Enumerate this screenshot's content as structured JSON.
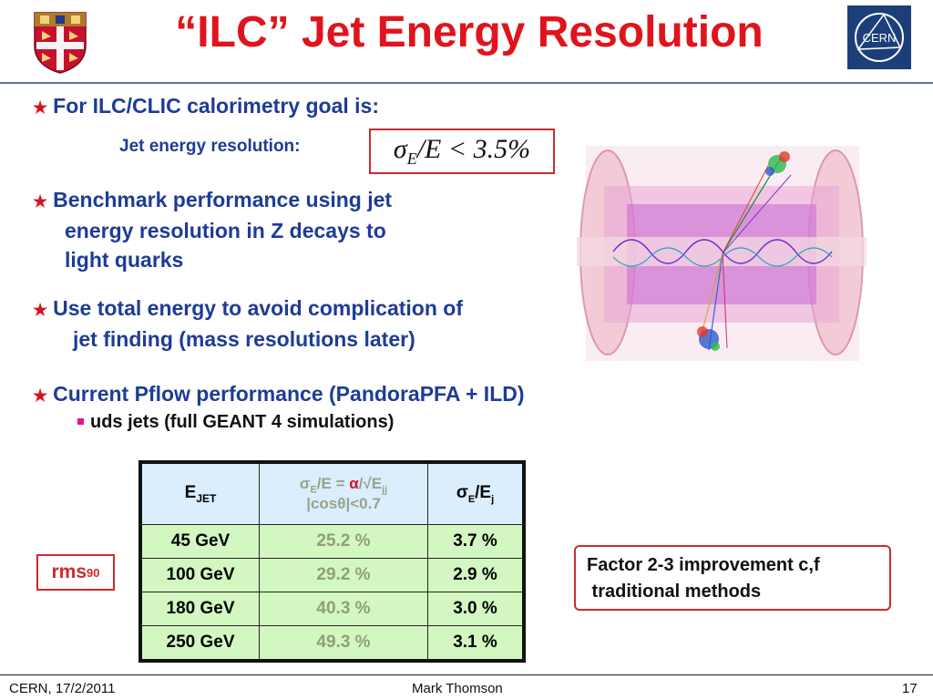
{
  "slide": {
    "title": "“ILC” Jet Energy Resolution",
    "bullets": {
      "b1": "For ILC/CLIC calorimetry goal is:",
      "b1_sub": "Jet energy resolution:",
      "formula": {
        "sigma": "σ",
        "sub": "E",
        "rest": "/E < 3.5%"
      },
      "b2_lines": [
        "Benchmark performance using jet",
        "energy resolution in Z decays to",
        "light quarks"
      ],
      "b3_lines": [
        "Use total energy to avoid complication of",
        "jet finding (mass resolutions later)"
      ],
      "b4": "Current Pflow performance (PandoraPFA + ILD)",
      "b4_sub": "uds jets (full GEANT 4 simulations)"
    },
    "table": {
      "headers": {
        "h1_main": "E",
        "h1_sub": "JET",
        "h2_sigma": "σ",
        "h2_sigma_sub": "E",
        "h2_mid": "/E = ",
        "h2_alpha": "α",
        "h2_slash": "/√E",
        "h2_sub": "jj",
        "h2_line2_a": "|cos",
        "h2_theta": "θ",
        "h2_line2_b": "|<0.7",
        "h3_sigma": "σ",
        "h3_sigma_sub": "E",
        "h3_mid": "/E",
        "h3_sub": "j"
      },
      "rows": [
        {
          "energy": "45 GeV",
          "alpha": "25.2 %",
          "res": "3.7 %"
        },
        {
          "energy": "100 GeV",
          "alpha": "29.2 %",
          "res": "2.9 %"
        },
        {
          "energy": "180 GeV",
          "alpha": "40.3 %",
          "res": "3.0 %"
        },
        {
          "energy": "250 GeV",
          "alpha": "49.3 %",
          "res": "3.1 %"
        }
      ]
    },
    "rms": {
      "label": "rms",
      "sub": "90"
    },
    "factor_lines": [
      "Factor 2-3 improvement c,f",
      " traditional methods"
    ],
    "logos": {
      "cern_text": "CERN"
    }
  },
  "footer": {
    "left": "CERN, 17/2/2011",
    "center": "Mark Thomson",
    "right": "17"
  },
  "colors": {
    "title": "#e0141c",
    "bullet_text": "#1e3c96",
    "star": "#d4141c",
    "box_border": "#cc2b2b",
    "table_header_bg": "#dbeefe",
    "table_row_bg": "#d3f7c0"
  }
}
